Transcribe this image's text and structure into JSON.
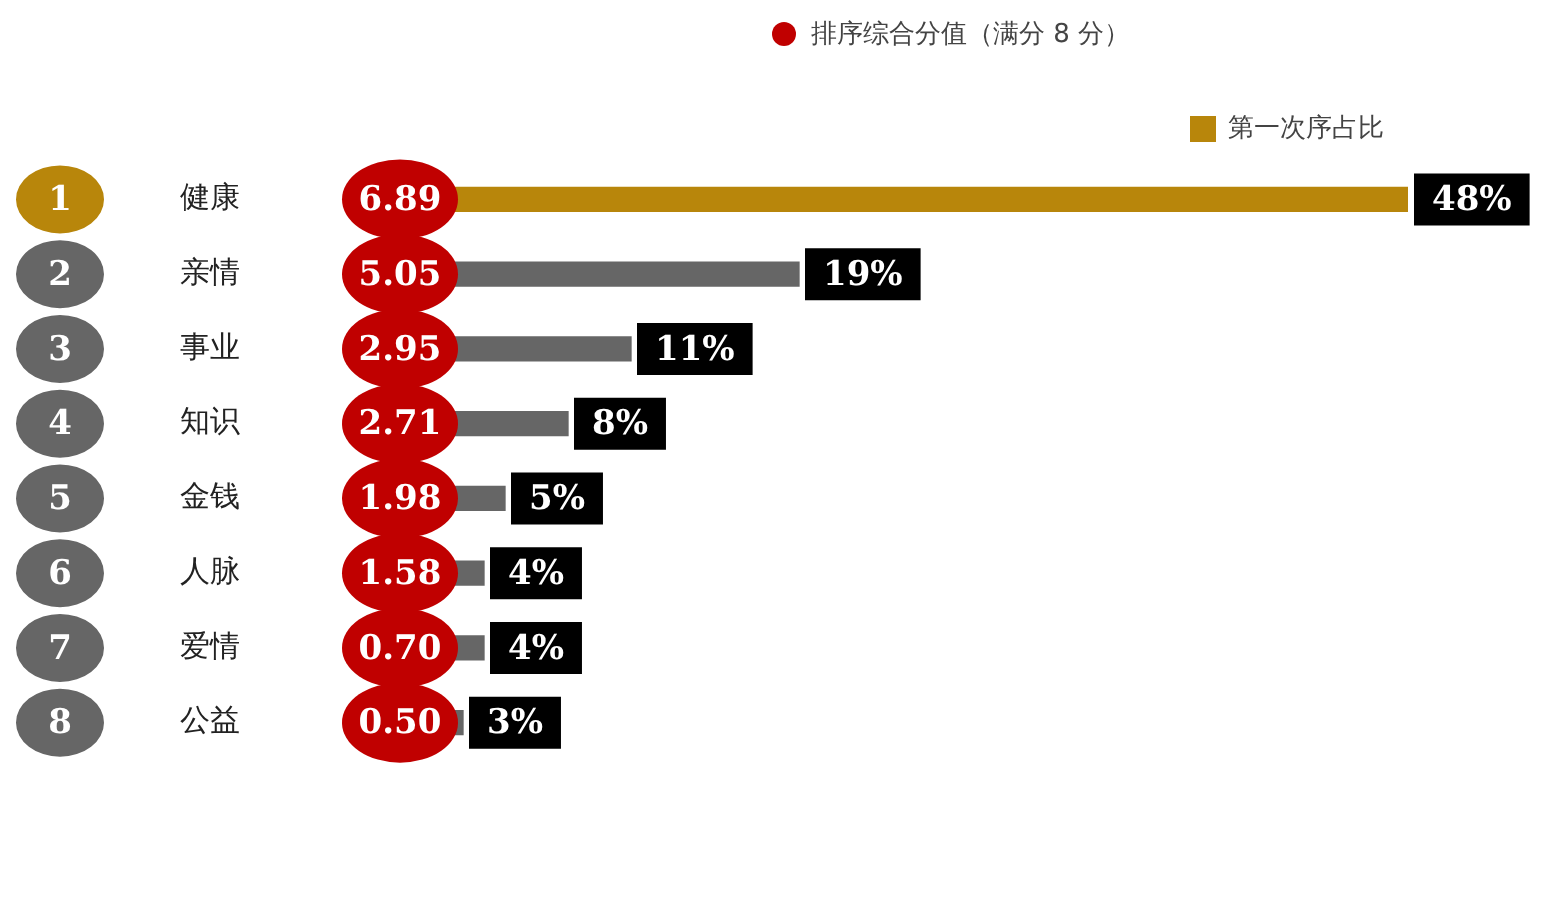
{
  "chart_data": {
    "type": "bar",
    "orientation": "horizontal",
    "legend": "top right",
    "data_labels": true,
    "categories": [
      "健康",
      "亲情",
      "事业",
      "知识",
      "金钱",
      "人脉",
      "爱情",
      "公益"
    ],
    "annotations": [
      "排序综合分值（满分 8 分）",
      "1",
      "2",
      "3",
      "4",
      "5",
      "6",
      "7",
      "8",
      "6.89",
      "5.05",
      "2.95",
      "2.71",
      "1.98",
      "1.58",
      "0.70",
      "0.50"
    ],
    "series": [
      {
        "name": "第一次序占比",
        "color": "#b8860b",
        "colors": [
          "#b8860b",
          "#666666",
          "#666666",
          "#666666",
          "#666666",
          "#666666",
          "#666666",
          "#666666"
        ],
        "values": [
          48,
          19,
          11,
          8,
          5,
          4,
          4,
          3
        ],
        "value_labels": [
          "48%",
          "19%",
          "11%",
          "8%",
          "5%",
          "4%",
          "4%",
          "3%"
        ]
      }
    ]
  }
}
